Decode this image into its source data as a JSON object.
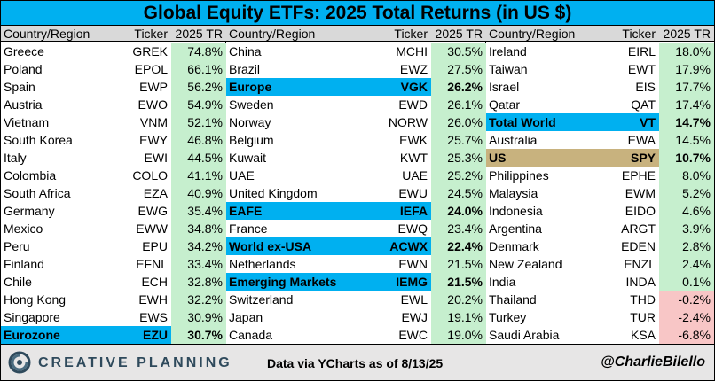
{
  "title": "Global Equity ETFs: 2025 Total Returns (in US $)",
  "colors": {
    "header_blue": "#00b0f0",
    "us_highlight": "#c8b27e",
    "positive_fill": "#c6efce",
    "negative_fill": "#f8c6c6",
    "header_gray": "#d9d9d9"
  },
  "headers": {
    "country": "Country/Region",
    "ticker": "Ticker",
    "tr": "2025 TR"
  },
  "tables": [
    {
      "rows": [
        {
          "country": "Greece",
          "ticker": "GREK",
          "tr": "74.8%",
          "value": 74.8,
          "highlight": ""
        },
        {
          "country": "Poland",
          "ticker": "EPOL",
          "tr": "66.1%",
          "value": 66.1,
          "highlight": ""
        },
        {
          "country": "Spain",
          "ticker": "EWP",
          "tr": "56.2%",
          "value": 56.2,
          "highlight": ""
        },
        {
          "country": "Austria",
          "ticker": "EWO",
          "tr": "54.9%",
          "value": 54.9,
          "highlight": ""
        },
        {
          "country": "Vietnam",
          "ticker": "VNM",
          "tr": "52.1%",
          "value": 52.1,
          "highlight": ""
        },
        {
          "country": "South Korea",
          "ticker": "EWY",
          "tr": "46.8%",
          "value": 46.8,
          "highlight": ""
        },
        {
          "country": "Italy",
          "ticker": "EWI",
          "tr": "44.5%",
          "value": 44.5,
          "highlight": ""
        },
        {
          "country": "Colombia",
          "ticker": "COLO",
          "tr": "41.1%",
          "value": 41.1,
          "highlight": ""
        },
        {
          "country": "South Africa",
          "ticker": "EZA",
          "tr": "40.9%",
          "value": 40.9,
          "highlight": ""
        },
        {
          "country": "Germany",
          "ticker": "EWG",
          "tr": "35.4%",
          "value": 35.4,
          "highlight": ""
        },
        {
          "country": "Mexico",
          "ticker": "EWW",
          "tr": "34.8%",
          "value": 34.8,
          "highlight": ""
        },
        {
          "country": "Peru",
          "ticker": "EPU",
          "tr": "34.2%",
          "value": 34.2,
          "highlight": ""
        },
        {
          "country": "Finland",
          "ticker": "EFNL",
          "tr": "33.4%",
          "value": 33.4,
          "highlight": ""
        },
        {
          "country": "Chile",
          "ticker": "ECH",
          "tr": "32.8%",
          "value": 32.8,
          "highlight": ""
        },
        {
          "country": "Hong Kong",
          "ticker": "EWH",
          "tr": "32.2%",
          "value": 32.2,
          "highlight": ""
        },
        {
          "country": "Singapore",
          "ticker": "EWS",
          "tr": "30.9%",
          "value": 30.9,
          "highlight": ""
        },
        {
          "country": "Eurozone",
          "ticker": "EZU",
          "tr": "30.7%",
          "value": 30.7,
          "highlight": "blue"
        }
      ]
    },
    {
      "rows": [
        {
          "country": "China",
          "ticker": "MCHI",
          "tr": "30.5%",
          "value": 30.5,
          "highlight": ""
        },
        {
          "country": "Brazil",
          "ticker": "EWZ",
          "tr": "27.5%",
          "value": 27.5,
          "highlight": ""
        },
        {
          "country": "Europe",
          "ticker": "VGK",
          "tr": "26.2%",
          "value": 26.2,
          "highlight": "blue"
        },
        {
          "country": "Sweden",
          "ticker": "EWD",
          "tr": "26.1%",
          "value": 26.1,
          "highlight": ""
        },
        {
          "country": "Norway",
          "ticker": "NORW",
          "tr": "26.0%",
          "value": 26.0,
          "highlight": ""
        },
        {
          "country": "Belgium",
          "ticker": "EWK",
          "tr": "25.7%",
          "value": 25.7,
          "highlight": ""
        },
        {
          "country": "Kuwait",
          "ticker": "KWT",
          "tr": "25.3%",
          "value": 25.3,
          "highlight": ""
        },
        {
          "country": "UAE",
          "ticker": "UAE",
          "tr": "25.2%",
          "value": 25.2,
          "highlight": ""
        },
        {
          "country": "United Kingdom",
          "ticker": "EWU",
          "tr": "24.5%",
          "value": 24.5,
          "highlight": ""
        },
        {
          "country": "EAFE",
          "ticker": "IEFA",
          "tr": "24.0%",
          "value": 24.0,
          "highlight": "blue"
        },
        {
          "country": "France",
          "ticker": "EWQ",
          "tr": "23.4%",
          "value": 23.4,
          "highlight": ""
        },
        {
          "country": "World ex-USA",
          "ticker": "ACWX",
          "tr": "22.4%",
          "value": 22.4,
          "highlight": "blue"
        },
        {
          "country": "Netherlands",
          "ticker": "EWN",
          "tr": "21.5%",
          "value": 21.5,
          "highlight": ""
        },
        {
          "country": "Emerging Markets",
          "ticker": "IEMG",
          "tr": "21.5%",
          "value": 21.5,
          "highlight": "blue"
        },
        {
          "country": "Switzerland",
          "ticker": "EWL",
          "tr": "20.2%",
          "value": 20.2,
          "highlight": ""
        },
        {
          "country": "Japan",
          "ticker": "EWJ",
          "tr": "19.1%",
          "value": 19.1,
          "highlight": ""
        },
        {
          "country": "Canada",
          "ticker": "EWC",
          "tr": "19.0%",
          "value": 19.0,
          "highlight": ""
        }
      ]
    },
    {
      "rows": [
        {
          "country": "Ireland",
          "ticker": "EIRL",
          "tr": "18.0%",
          "value": 18.0,
          "highlight": ""
        },
        {
          "country": "Taiwan",
          "ticker": "EWT",
          "tr": "17.9%",
          "value": 17.9,
          "highlight": ""
        },
        {
          "country": "Israel",
          "ticker": "EIS",
          "tr": "17.7%",
          "value": 17.7,
          "highlight": ""
        },
        {
          "country": "Qatar",
          "ticker": "QAT",
          "tr": "17.4%",
          "value": 17.4,
          "highlight": ""
        },
        {
          "country": "Total World",
          "ticker": "VT",
          "tr": "14.7%",
          "value": 14.7,
          "highlight": "blue"
        },
        {
          "country": "Australia",
          "ticker": "EWA",
          "tr": "14.5%",
          "value": 14.5,
          "highlight": ""
        },
        {
          "country": "US",
          "ticker": "SPY",
          "tr": "10.7%",
          "value": 10.7,
          "highlight": "us"
        },
        {
          "country": "Philippines",
          "ticker": "EPHE",
          "tr": "8.0%",
          "value": 8.0,
          "highlight": ""
        },
        {
          "country": "Malaysia",
          "ticker": "EWM",
          "tr": "5.2%",
          "value": 5.2,
          "highlight": ""
        },
        {
          "country": "Indonesia",
          "ticker": "EIDO",
          "tr": "4.6%",
          "value": 4.6,
          "highlight": ""
        },
        {
          "country": "Argentina",
          "ticker": "ARGT",
          "tr": "3.9%",
          "value": 3.9,
          "highlight": ""
        },
        {
          "country": "Denmark",
          "ticker": "EDEN",
          "tr": "2.8%",
          "value": 2.8,
          "highlight": ""
        },
        {
          "country": "New Zealand",
          "ticker": "ENZL",
          "tr": "2.4%",
          "value": 2.4,
          "highlight": ""
        },
        {
          "country": "India",
          "ticker": "INDA",
          "tr": "0.1%",
          "value": 0.1,
          "highlight": ""
        },
        {
          "country": "Thailand",
          "ticker": "THD",
          "tr": "-0.2%",
          "value": -0.2,
          "highlight": ""
        },
        {
          "country": "Turkey",
          "ticker": "TUR",
          "tr": "-2.4%",
          "value": -2.4,
          "highlight": ""
        },
        {
          "country": "Saudi Arabia",
          "ticker": "KSA",
          "tr": "-6.8%",
          "value": -6.8,
          "highlight": ""
        }
      ]
    }
  ],
  "chart_data": {
    "type": "table",
    "title": "Global Equity ETFs: 2025 Total Returns (in US $)",
    "columns": [
      "Country/Region",
      "Ticker",
      "2025 TR"
    ],
    "categories": [
      "Greece",
      "Poland",
      "Spain",
      "Austria",
      "Vietnam",
      "South Korea",
      "Italy",
      "Colombia",
      "South Africa",
      "Germany",
      "Mexico",
      "Peru",
      "Finland",
      "Chile",
      "Hong Kong",
      "Singapore",
      "Eurozone",
      "China",
      "Brazil",
      "Europe",
      "Sweden",
      "Norway",
      "Belgium",
      "Kuwait",
      "UAE",
      "United Kingdom",
      "EAFE",
      "France",
      "World ex-USA",
      "Netherlands",
      "Emerging Markets",
      "Switzerland",
      "Japan",
      "Canada",
      "Ireland",
      "Taiwan",
      "Israel",
      "Qatar",
      "Total World",
      "Australia",
      "US",
      "Philippines",
      "Malaysia",
      "Indonesia",
      "Argentina",
      "Denmark",
      "New Zealand",
      "India",
      "Thailand",
      "Turkey",
      "Saudi Arabia"
    ],
    "tickers": [
      "GREK",
      "EPOL",
      "EWP",
      "EWO",
      "VNM",
      "EWY",
      "EWI",
      "COLO",
      "EZA",
      "EWG",
      "EWW",
      "EPU",
      "EFNL",
      "ECH",
      "EWH",
      "EWS",
      "EZU",
      "MCHI",
      "EWZ",
      "VGK",
      "EWD",
      "NORW",
      "EWK",
      "KWT",
      "UAE",
      "EWU",
      "IEFA",
      "EWQ",
      "ACWX",
      "EWN",
      "IEMG",
      "EWL",
      "EWJ",
      "EWC",
      "EIRL",
      "EWT",
      "EIS",
      "QAT",
      "VT",
      "EWA",
      "SPY",
      "EPHE",
      "EWM",
      "EIDO",
      "ARGT",
      "EDEN",
      "ENZL",
      "INDA",
      "THD",
      "TUR",
      "KSA"
    ],
    "values": [
      74.8,
      66.1,
      56.2,
      54.9,
      52.1,
      46.8,
      44.5,
      41.1,
      40.9,
      35.4,
      34.8,
      34.2,
      33.4,
      32.8,
      32.2,
      30.9,
      30.7,
      30.5,
      27.5,
      26.2,
      26.1,
      26.0,
      25.7,
      25.3,
      25.2,
      24.5,
      24.0,
      23.4,
      22.4,
      21.5,
      21.5,
      20.2,
      19.1,
      19.0,
      18.0,
      17.9,
      17.7,
      17.4,
      14.7,
      14.5,
      10.7,
      8.0,
      5.2,
      4.6,
      3.9,
      2.8,
      2.4,
      0.1,
      -0.2,
      -2.4,
      -6.8
    ]
  },
  "footer": {
    "brand": "CREATIVE PLANNING",
    "source": "Data via YCharts as of 8/13/25",
    "handle": "@CharlieBilello",
    "logo_icon": "creative-planning-logo"
  }
}
